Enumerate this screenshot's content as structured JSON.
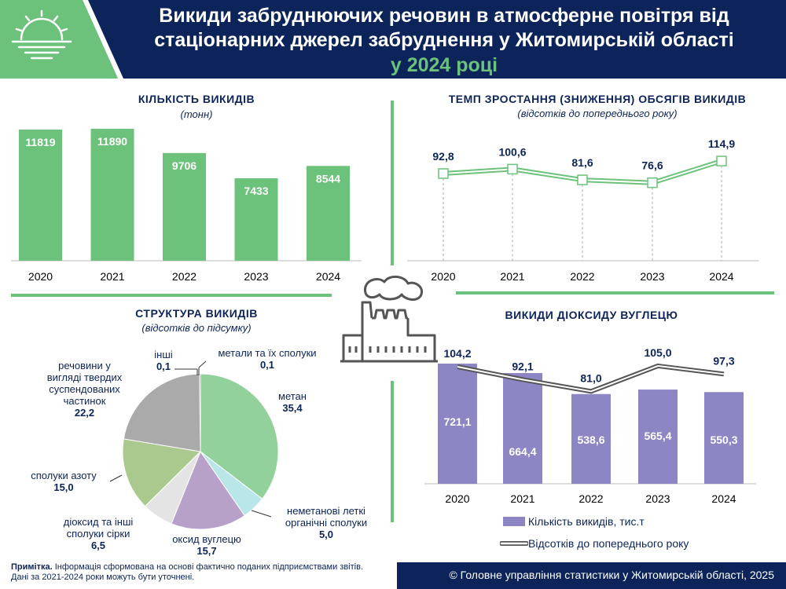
{
  "header": {
    "title_line1": "Викиди забруднюючих речовин в атмосферне повітря від",
    "title_line2": "стаціонарних джерел забруднення у Житомирській області",
    "title_line3": "у 2024 році"
  },
  "colors": {
    "navy": "#0c2459",
    "green": "#6cc27a",
    "purple": "#8c86c4",
    "line_gray": "#555555"
  },
  "chart_data": [
    {
      "type": "bar",
      "title": "КІЛЬКІСТЬ ВИКИДІВ",
      "subtitle": "(тонн)",
      "categories": [
        "2020",
        "2021",
        "2022",
        "2023",
        "2024"
      ],
      "values": [
        11819,
        11890,
        9706,
        7433,
        8544
      ],
      "ylim": [
        0,
        13000
      ]
    },
    {
      "type": "line",
      "title": "ТЕМП ЗРОСТАННЯ (ЗНИЖЕННЯ) ОБСЯГІВ ВИКИДІВ",
      "subtitle": "(відсотків до попереднього року)",
      "x": [
        "2020",
        "2021",
        "2022",
        "2023",
        "2024"
      ],
      "values": [
        92.8,
        100.6,
        81.6,
        76.6,
        114.9
      ],
      "value_labels": [
        "92,8",
        "100,6",
        "81,6",
        "76,6",
        "114,9"
      ],
      "ylim": [
        0,
        130
      ]
    },
    {
      "type": "pie",
      "title": "СТРУКТУРА ВИКИДІВ",
      "subtitle": "(відсотків до підсумку)",
      "slices": [
        {
          "label": "метан",
          "value": 35.4,
          "value_text": "35,4",
          "color": "#93d19c"
        },
        {
          "label": "неметанові леткі органічні сполуки",
          "value": 5.0,
          "value_text": "5,0",
          "color": "#b9e6e8"
        },
        {
          "label": "оксид вуглецю",
          "value": 15.7,
          "value_text": "15,7",
          "color": "#b8a1c8"
        },
        {
          "label": "діоксид та інші сполуки сірки",
          "value": 6.5,
          "value_text": "6,5",
          "color": "#e4e4e4"
        },
        {
          "label": "сполуки азоту",
          "value": 15.0,
          "value_text": "15,0",
          "color": "#a9c98e"
        },
        {
          "label": "речовини у вигляді твердих суспендованих частинок",
          "value": 22.2,
          "value_text": "22,2",
          "color": "#aaaaaa"
        },
        {
          "label": "інші",
          "value": 0.1,
          "value_text": "0,1",
          "color": "#ffffff"
        },
        {
          "label": "метали та їх сполуки",
          "value": 0.1,
          "value_text": "0,1",
          "color": "#000000"
        }
      ]
    },
    {
      "type": "bar",
      "title": "ВИКИДИ ДІОКСИДУ ВУГЛЕЦЮ",
      "categories": [
        "2020",
        "2021",
        "2022",
        "2023",
        "2024"
      ],
      "series": [
        {
          "name": "Кількість викидів, тис.т",
          "type": "bar",
          "values": [
            721.1,
            664.4,
            538.6,
            565.4,
            550.3
          ],
          "value_labels": [
            "721,1",
            "664,4",
            "538,6",
            "565,4",
            "550,3"
          ]
        },
        {
          "name": "Відсотків до попереднього року",
          "type": "line",
          "values": [
            104.2,
            92.1,
            81.0,
            105.0,
            97.3
          ],
          "value_labels": [
            "104,2",
            "92,1",
            "81,0",
            "105,0",
            "97,3"
          ]
        }
      ],
      "legend": "bottom"
    }
  ],
  "pie_labels": {
    "metan_name": "метан",
    "nmvoc_name_1": "неметанові леткі",
    "nmvoc_name_2": "органічні сполуки",
    "co_name": "оксид вуглецю",
    "so_name_1": "діоксид та інші",
    "so_name_2": "сполуки сірки",
    "no_name": "сполуки азоту",
    "pm_name_1": "речовини у",
    "pm_name_2": "вигляді твердих",
    "pm_name_3": "суспендованих",
    "pm_name_4": "частинок",
    "other_name": "інші",
    "metals_name": "метали та їх сполуки"
  },
  "footer": {
    "note_bold": "Примітка.",
    "note_text": " Інформація сформована на основі фактично поданих підприємствами звітів. Дані за 2021-2024 роки можуть бути уточнені.",
    "copyright": "© Головне управління статистики у Житомирській області, 2025"
  },
  "icons": [
    "sun-logo-icon",
    "factory-icon"
  ]
}
